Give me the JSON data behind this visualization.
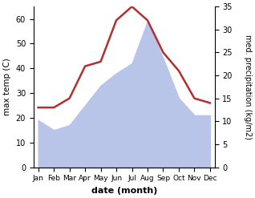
{
  "months": [
    "Jan",
    "Feb",
    "Mar",
    "Apr",
    "May",
    "Jun",
    "Jul",
    "Aug",
    "Sep",
    "Oct",
    "Nov",
    "Dec"
  ],
  "max_temp": [
    19,
    15,
    17,
    25,
    33,
    38,
    42,
    59,
    44,
    28,
    21,
    21
  ],
  "precipitation": [
    13,
    13,
    15,
    22,
    23,
    32,
    35,
    32,
    25,
    21,
    15,
    14
  ],
  "temp_ylim": [
    0,
    65
  ],
  "precip_ylim": [
    0,
    35
  ],
  "temp_color": "#b8c4e8",
  "precip_color": "#b03030",
  "xlabel": "date (month)",
  "ylabel_left": "max temp (C)",
  "ylabel_right": "med. precipitation (kg/m2)",
  "temp_yticks": [
    0,
    10,
    20,
    30,
    40,
    50,
    60
  ],
  "precip_yticks": [
    0,
    5,
    10,
    15,
    20,
    25,
    30,
    35
  ],
  "figwidth": 3.18,
  "figheight": 2.47,
  "dpi": 100
}
